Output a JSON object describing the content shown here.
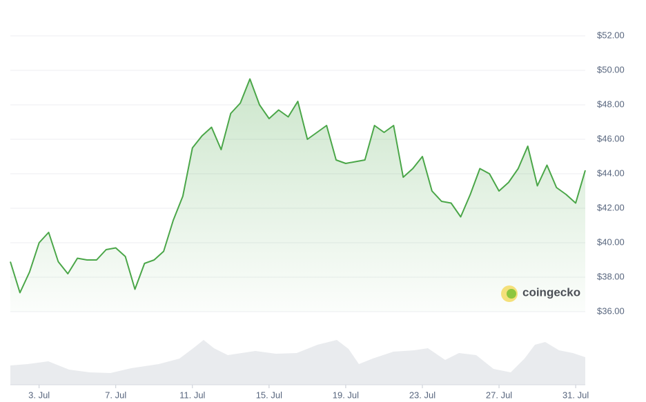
{
  "chart_data": {
    "type": "line",
    "color": "#4aa648",
    "grid": true,
    "watermark": "coingecko",
    "xlim": [
      1.5,
      31.5
    ],
    "xticks": [
      {
        "value": 3,
        "label": "3. Jul"
      },
      {
        "value": 7,
        "label": "7. Jul"
      },
      {
        "value": 11,
        "label": "11. Jul"
      },
      {
        "value": 15,
        "label": "15. Jul"
      },
      {
        "value": 19,
        "label": "19. Jul"
      },
      {
        "value": 23,
        "label": "23. Jul"
      },
      {
        "value": 27,
        "label": "27. Jul"
      },
      {
        "value": 31,
        "label": "31. Jul"
      }
    ],
    "ylim": [
      36,
      52
    ],
    "yticks": [
      {
        "value": 36,
        "label": "$36.00"
      },
      {
        "value": 38,
        "label": "$38.00"
      },
      {
        "value": 40,
        "label": "$40.00"
      },
      {
        "value": 42,
        "label": "$42.00"
      },
      {
        "value": 44,
        "label": "$44.00"
      },
      {
        "value": 46,
        "label": "$46.00"
      },
      {
        "value": 48,
        "label": "$48.00"
      },
      {
        "value": 50,
        "label": "$50.00"
      },
      {
        "value": 52,
        "label": "$52.00"
      }
    ],
    "x": [
      1.5,
      2,
      2.5,
      3,
      3.5,
      4,
      4.5,
      5,
      5.5,
      6,
      6.5,
      7,
      7.5,
      8,
      8.5,
      9,
      9.5,
      10,
      10.5,
      11,
      11.5,
      12,
      12.5,
      13,
      13.5,
      14,
      14.5,
      15,
      15.5,
      16,
      16.5,
      17,
      17.5,
      18,
      18.5,
      19,
      19.5,
      20,
      20.5,
      21,
      21.5,
      22,
      22.5,
      23,
      23.5,
      24,
      24.5,
      25,
      25.5,
      26,
      26.5,
      27,
      27.5,
      28,
      28.5,
      29,
      29.5,
      30,
      30.5,
      31,
      31.5
    ],
    "values": [
      38.9,
      37.1,
      38.3,
      40.0,
      40.6,
      38.9,
      38.2,
      39.1,
      39.0,
      39.0,
      39.6,
      39.7,
      39.2,
      37.3,
      38.8,
      39.0,
      39.5,
      41.3,
      42.7,
      45.5,
      46.2,
      46.7,
      45.4,
      47.5,
      48.1,
      49.5,
      48.0,
      47.2,
      47.7,
      47.3,
      48.2,
      46.0,
      46.4,
      46.8,
      44.8,
      44.6,
      44.7,
      44.8,
      46.8,
      46.4,
      46.8,
      43.8,
      44.3,
      45.0,
      43.0,
      42.4,
      42.3,
      41.5,
      42.8,
      44.3,
      44.0,
      43.0,
      43.5,
      44.3,
      45.6,
      43.3,
      44.5,
      43.2,
      42.8,
      42.3,
      44.2
    ]
  }
}
